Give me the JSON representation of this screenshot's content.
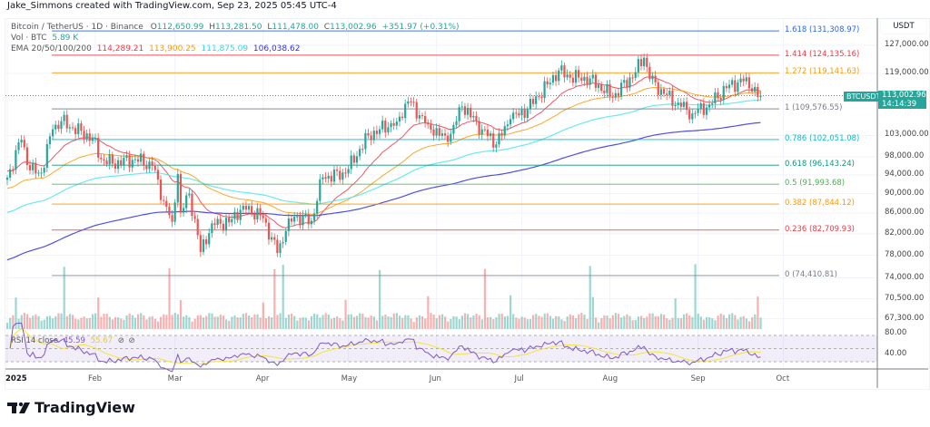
{
  "credit": "Jake_Simmons created with TradingView.com, Sep 23, 2025 05:45 UTC-4",
  "legend": {
    "symbol": "Bitcoin / TetherUS · 1D · Binance",
    "o_label": "O",
    "open": "112,650.99",
    "h_label": "H",
    "high": "113,281.50",
    "l_label": "L",
    "low": "111,478.00",
    "c_label": "C",
    "close": "113,002.96",
    "change": "+351.97 (+0.31%)",
    "vol_label": "Vol · BTC",
    "vol_value": "5.89 K",
    "ema_label": "EMA 20/50/100/200",
    "ema_values": [
      "114,289.21",
      "113,900.25",
      "111,875.09",
      "106,038.62"
    ]
  },
  "colors": {
    "up": "#26a69a",
    "down": "#ef5350",
    "ema20": "#f23645",
    "ema50": "#ff9800",
    "ema100": "#4ee6f0",
    "ema200": "#2f2fe8",
    "rsi": "#7e57c2",
    "rsi_ma": "#f5e33b"
  },
  "price_axis": {
    "unit": "USDT",
    "ticks": [
      "127,000.00",
      "119,000.00",
      "103,000.00",
      "98,000.00",
      "94,000.00",
      "90,000.00",
      "86,000.00",
      "82,000.00",
      "78,000.00",
      "74,000.00",
      "70,500.00",
      "67,300.00"
    ],
    "tick_values": [
      127000,
      119000,
      103000,
      98000,
      94000,
      90000,
      86000,
      82000,
      78000,
      74000,
      70500,
      67300
    ],
    "scale": "log"
  },
  "last_price": {
    "symbol": "BTCUSDT",
    "price": "113,002.96",
    "countdown": "14:14:39"
  },
  "time_axis": {
    "labels": [
      "2025",
      "Feb",
      "Mar",
      "Apr",
      "May",
      "Jun",
      "Jul",
      "Aug",
      "Sep",
      "Oct"
    ],
    "dates": [
      "2025-01-01",
      "2025-02-01",
      "2025-03-01",
      "2025-04-01",
      "2025-05-01",
      "2025-06-01",
      "2025-07-01",
      "2025-08-01",
      "2025-09-01",
      "2025-10-01"
    ]
  },
  "rsi": {
    "label": "RSI 14 close",
    "value": "45.59",
    "ma_value": "55.67",
    "levels": [
      "80.00",
      "40.00"
    ]
  },
  "logo": "TradingView",
  "chart_data": {
    "type": "candlestick",
    "title": "Bitcoin / TetherUS · 1D · Binance",
    "xlim": [
      "2025-01-01",
      "2025-10-01"
    ],
    "ylim": [
      66000,
      131309
    ],
    "grid": true,
    "close_points": [
      [
        "2025-01-01",
        93400
      ],
      [
        "2025-01-06",
        102000
      ],
      [
        "2025-01-09",
        95000
      ],
      [
        "2025-01-13",
        94500
      ],
      [
        "2025-01-17",
        104500
      ],
      [
        "2025-01-20",
        106500
      ],
      [
        "2025-01-24",
        104800
      ],
      [
        "2025-01-31",
        102400
      ],
      [
        "2025-02-03",
        97500
      ],
      [
        "2025-02-07",
        96500
      ],
      [
        "2025-02-15",
        97500
      ],
      [
        "2025-02-21",
        96000
      ],
      [
        "2025-02-25",
        88500
      ],
      [
        "2025-02-28",
        84300
      ],
      [
        "2025-03-02",
        94200
      ],
      [
        "2025-03-03",
        86100
      ],
      [
        "2025-03-06",
        90000
      ],
      [
        "2025-03-10",
        78600
      ],
      [
        "2025-03-14",
        84000
      ],
      [
        "2025-03-20",
        84200
      ],
      [
        "2025-03-25",
        87500
      ],
      [
        "2025-04-01",
        85000
      ],
      [
        "2025-04-06",
        78400
      ],
      [
        "2025-04-09",
        82500
      ],
      [
        "2025-04-12",
        85300
      ],
      [
        "2025-04-18",
        84500
      ],
      [
        "2025-04-22",
        93500
      ],
      [
        "2025-04-30",
        94300
      ],
      [
        "2025-05-08",
        103000
      ],
      [
        "2025-05-12",
        104500
      ],
      [
        "2025-05-18",
        106400
      ],
      [
        "2025-05-22",
        111500
      ],
      [
        "2025-05-29",
        105700
      ],
      [
        "2025-06-05",
        101500
      ],
      [
        "2025-06-10",
        110200
      ],
      [
        "2025-06-17",
        104500
      ],
      [
        "2025-06-22",
        100900
      ],
      [
        "2025-06-27",
        107000
      ],
      [
        "2025-07-03",
        109500
      ],
      [
        "2025-07-10",
        116000
      ],
      [
        "2025-07-14",
        119800
      ],
      [
        "2025-07-18",
        117800
      ],
      [
        "2025-07-25",
        117600
      ],
      [
        "2025-08-02",
        112500
      ],
      [
        "2025-08-10",
        119300
      ],
      [
        "2025-08-13",
        123400
      ],
      [
        "2025-08-15",
        117400
      ],
      [
        "2025-08-20",
        113500
      ],
      [
        "2025-08-26",
        110100
      ],
      [
        "2025-08-30",
        108400
      ],
      [
        "2025-09-05",
        110700
      ],
      [
        "2025-09-12",
        115900
      ],
      [
        "2025-09-17",
        116800
      ],
      [
        "2025-09-21",
        115300
      ],
      [
        "2025-09-22",
        112650
      ],
      [
        "2025-09-23",
        113003
      ]
    ],
    "fib_levels": [
      {
        "ratio": "1.618",
        "price": 131308.97,
        "label": "1.618 (131,308.97)",
        "color": "#2962ff"
      },
      {
        "ratio": "1.414",
        "price": 124135.16,
        "label": "1.414 (124,135.16)",
        "color": "#f23645"
      },
      {
        "ratio": "1.272",
        "price": 119141.63,
        "label": "1.272 (119,141.63)",
        "color": "#ff9800"
      },
      {
        "ratio": "1",
        "price": 109576.55,
        "label": "1 (109,576.55)",
        "color": "#787b86"
      },
      {
        "ratio": "0.786",
        "price": 102051.08,
        "label": "0.786 (102,051.08)",
        "color": "#00bcd4"
      },
      {
        "ratio": "0.618",
        "price": 96143.24,
        "label": "0.618 (96,143.24)",
        "color": "#089981"
      },
      {
        "ratio": "0.5",
        "price": 91993.68,
        "label": "0.5 (91,993.68)",
        "color": "#4caf50"
      },
      {
        "ratio": "0.382",
        "price": 87844.12,
        "label": "0.382 (87,844.12)",
        "color": "#ff9800"
      },
      {
        "ratio": "0.236",
        "price": 82709.93,
        "label": "0.236 (82,709.93)",
        "color": "#f23645"
      },
      {
        "ratio": "0",
        "price": 74410.81,
        "label": "0 (74,410.81)",
        "color": "#787b86"
      }
    ]
  }
}
